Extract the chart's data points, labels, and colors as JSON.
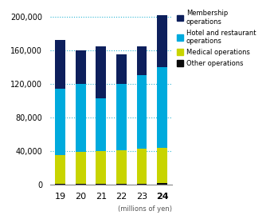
{
  "categories": [
    "19",
    "20",
    "21",
    "22",
    "23",
    "24"
  ],
  "segments": [
    {
      "name": "Other operations",
      "values": [
        1000,
        1000,
        1000,
        1000,
        1000,
        2000
      ],
      "color": "#0a0a0a"
    },
    {
      "name": "Medical operations",
      "values": [
        34000,
        38000,
        39000,
        40000,
        42000,
        42000
      ],
      "color": "#c8d400"
    },
    {
      "name": "Hotel and restaurant\noperations",
      "values": [
        79000,
        81000,
        63000,
        79000,
        87000,
        96000
      ],
      "color": "#00aadd"
    },
    {
      "name": "Membership\noperations",
      "values": [
        58000,
        40000,
        62000,
        35000,
        35000,
        62000
      ],
      "color": "#0d1f5c"
    }
  ],
  "yticks": [
    0,
    40000,
    80000,
    120000,
    160000,
    200000
  ],
  "ytick_labels": [
    "0",
    "40,000",
    "80,000",
    "120,000",
    "160,000",
    "200,000"
  ],
  "ylim": [
    0,
    212000
  ],
  "xlabel_note": "(millions of yen)",
  "grid_color": "#29b6d4",
  "background_color": "#ffffff",
  "bar_width": 0.5
}
